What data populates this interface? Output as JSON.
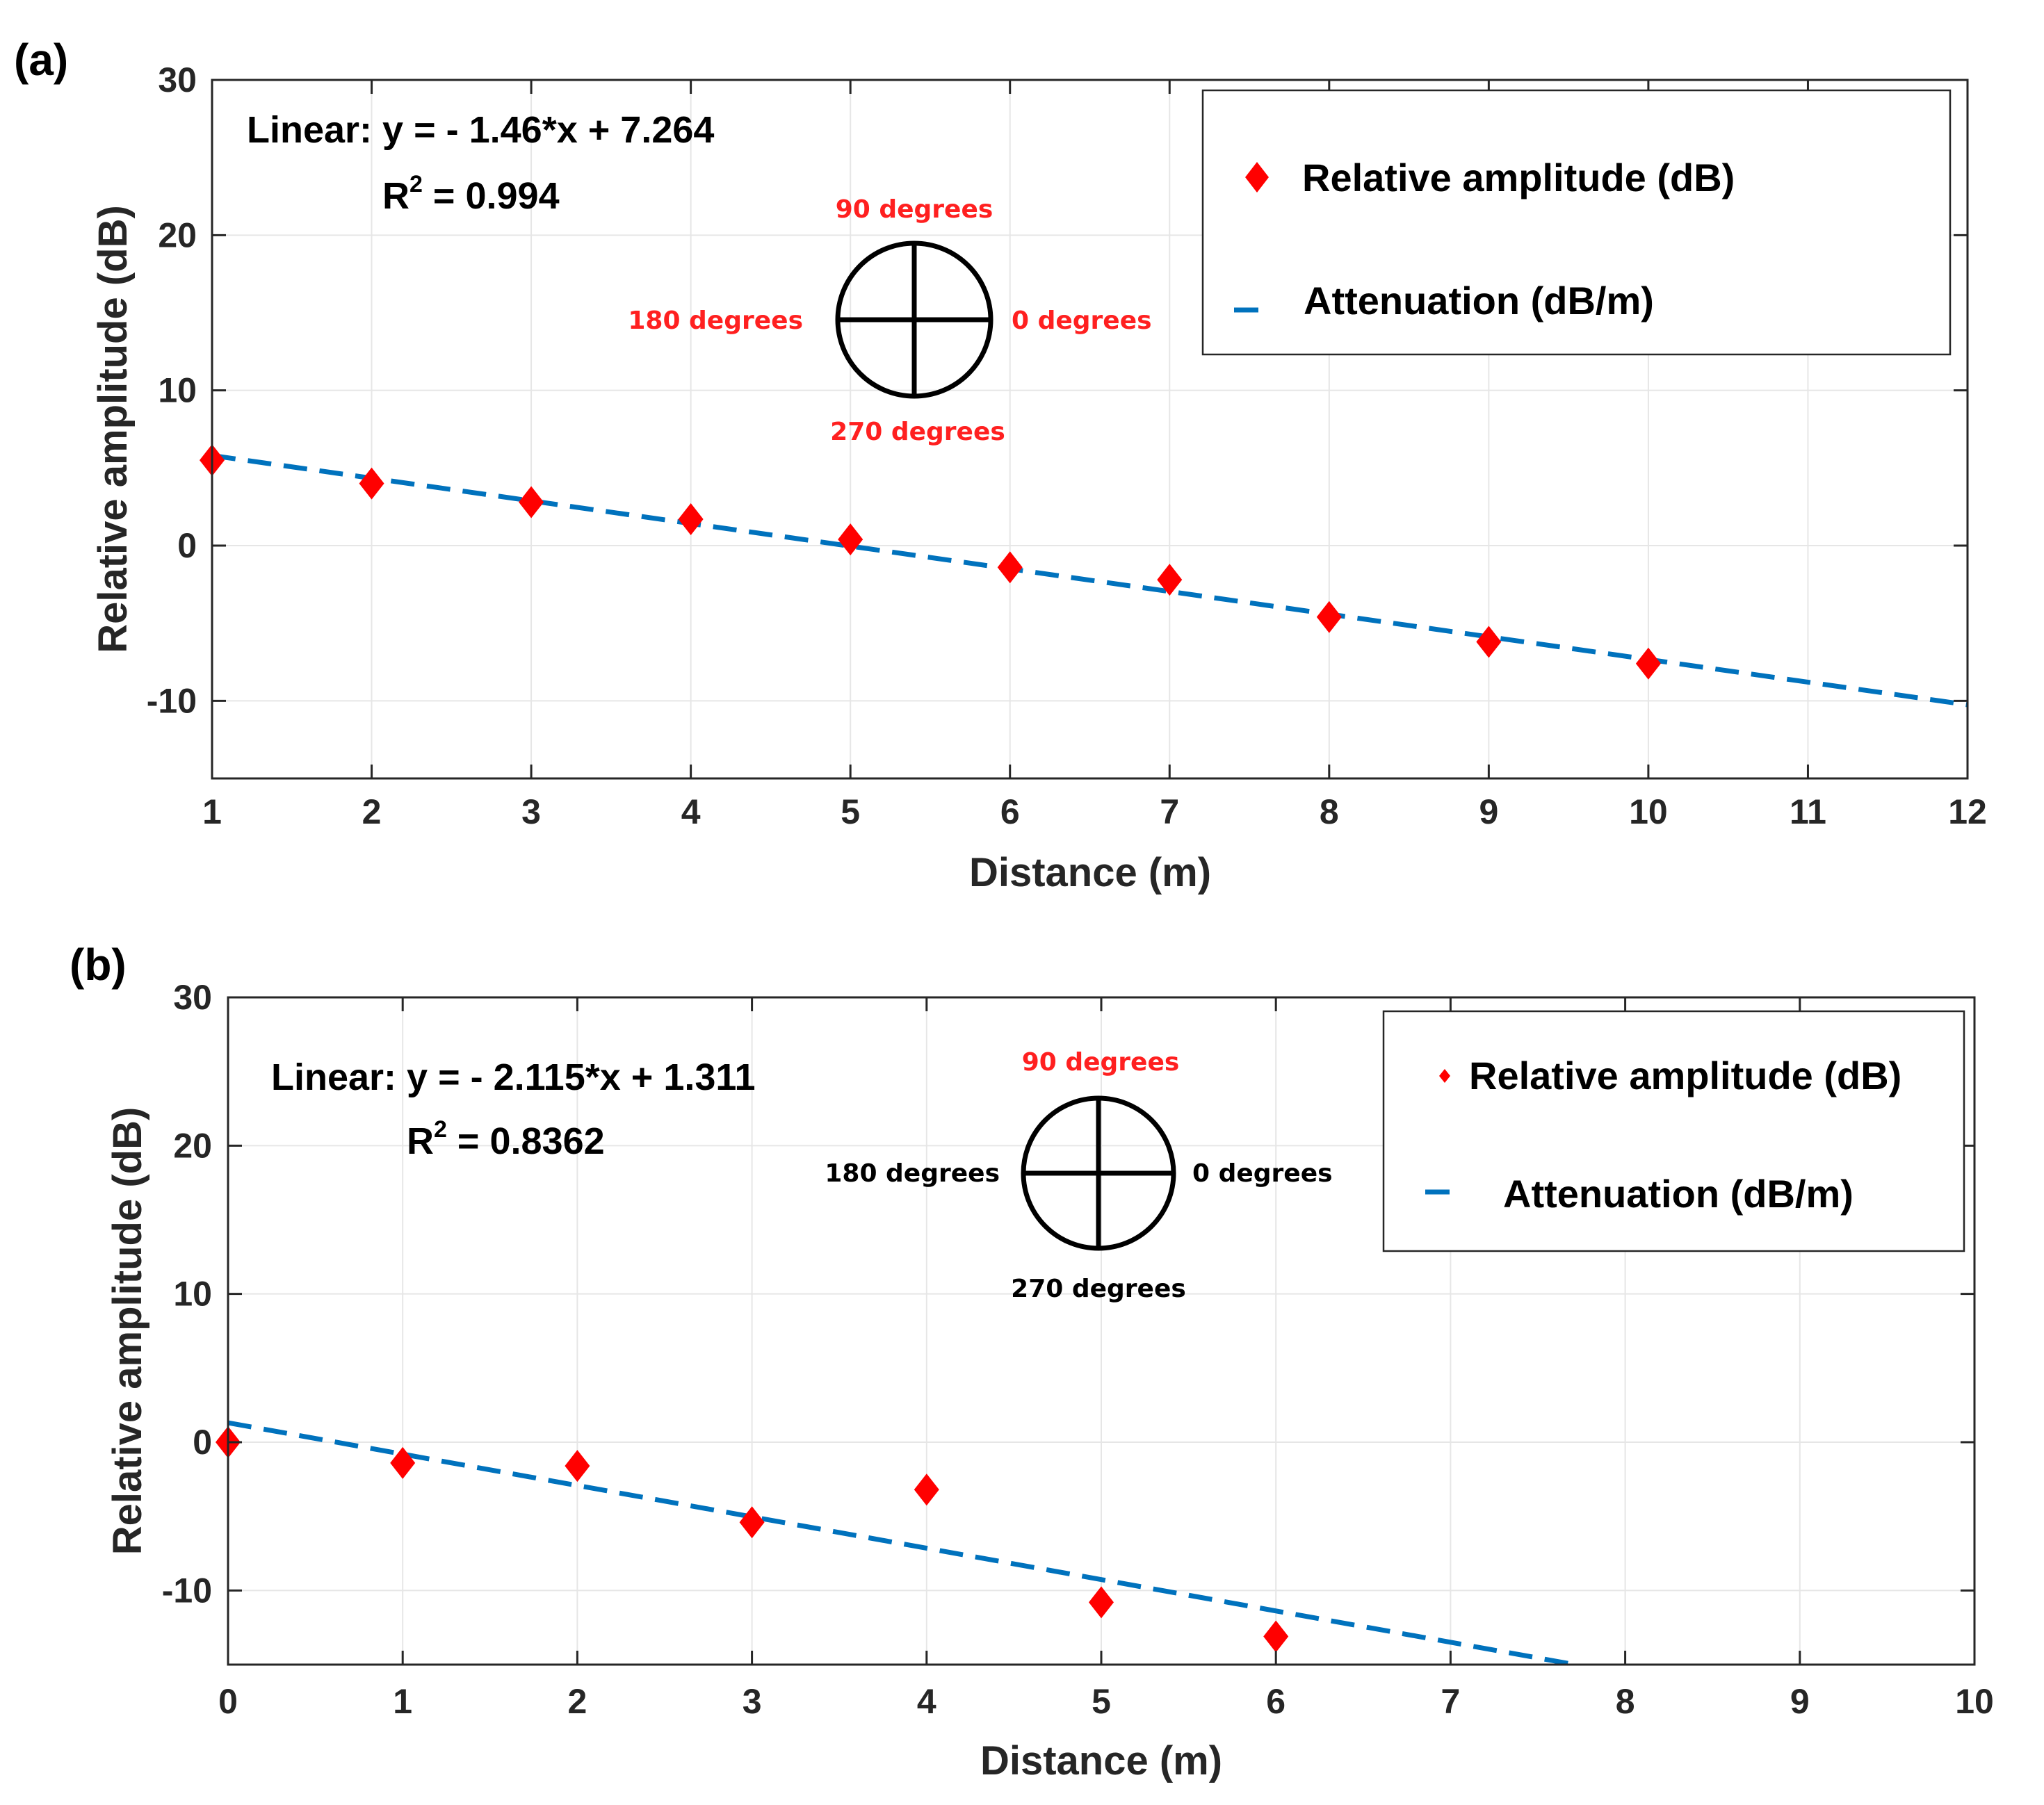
{
  "colors": {
    "marker": "#ff0000",
    "fit": "#0072bd",
    "grid": "#e6e6e6",
    "axes": "#262626",
    "degree_red": "#ff2020",
    "degree_black": "#000000"
  },
  "chart_data": [
    {
      "type": "scatter",
      "panel_label": "(a)",
      "xlabel": "Distance (m)",
      "ylabel": "Relative amplitude (dB)",
      "xlim": [
        1,
        12
      ],
      "ylim": [
        -15,
        30
      ],
      "xticks": [
        1,
        2,
        3,
        4,
        5,
        6,
        7,
        8,
        9,
        10,
        11,
        12
      ],
      "yticks": [
        -10,
        0,
        10,
        20,
        30
      ],
      "ytick_labels": [
        "-10",
        "0",
        "10",
        "20",
        "30"
      ],
      "grid": true,
      "legend_position": "top-right",
      "series": [
        {
          "name": "Relative amplitude (dB)",
          "kind": "marker",
          "x": [
            1,
            2,
            3,
            4,
            5,
            6,
            7,
            8,
            9,
            10
          ],
          "y": [
            5.5,
            4.0,
            2.8,
            1.7,
            0.4,
            -1.4,
            -2.2,
            -4.6,
            -6.2,
            -7.6
          ]
        },
        {
          "name": "Attenuation (dB/m)",
          "kind": "dashed-line",
          "slope": -1.46,
          "intercept": 7.264,
          "x_range": [
            1,
            12
          ]
        }
      ],
      "annotations": {
        "equation": "Linear:  y = - 1.46*x + 7.264",
        "r2_prefix": "R",
        "r2_exp": "2",
        "r2_value": " = 0.994"
      },
      "compass": {
        "top": "90 degrees",
        "left": "180 degrees",
        "right": "0 degrees",
        "bottom": "270 degrees",
        "highlight": [
          "top",
          "left",
          "right",
          "bottom"
        ]
      }
    },
    {
      "type": "scatter",
      "panel_label": "(b)",
      "xlabel": "Distance (m)",
      "ylabel": "Relative amplitude (dB)",
      "xlim": [
        0,
        10
      ],
      "ylim": [
        -15,
        30
      ],
      "xticks": [
        0,
        1,
        2,
        3,
        4,
        5,
        6,
        7,
        8,
        9,
        10
      ],
      "yticks": [
        -10,
        0,
        10,
        20,
        30
      ],
      "ytick_labels": [
        "-10",
        "0",
        "10",
        "20",
        "30"
      ],
      "grid": true,
      "legend_position": "top-right",
      "series": [
        {
          "name": "Relative amplitude (dB)",
          "kind": "marker",
          "x": [
            0,
            1,
            2,
            3,
            4,
            5,
            6
          ],
          "y": [
            0.0,
            -1.4,
            -1.6,
            -5.4,
            -3.2,
            -10.8,
            -13.1
          ]
        },
        {
          "name": "Attenuation (dB/m)",
          "kind": "dashed-line",
          "slope": -2.115,
          "intercept": 1.311,
          "x_range": [
            0,
            7.71
          ]
        }
      ],
      "annotations": {
        "equation": "Linear:  y = - 2.115*x + 1.311",
        "r2_prefix": "R",
        "r2_exp": "2",
        "r2_value": " = 0.8362"
      },
      "compass": {
        "top": "90 degrees",
        "left": "180 degrees",
        "right": "0 degrees",
        "bottom": "270 degrees",
        "highlight": [
          "top"
        ]
      }
    }
  ]
}
